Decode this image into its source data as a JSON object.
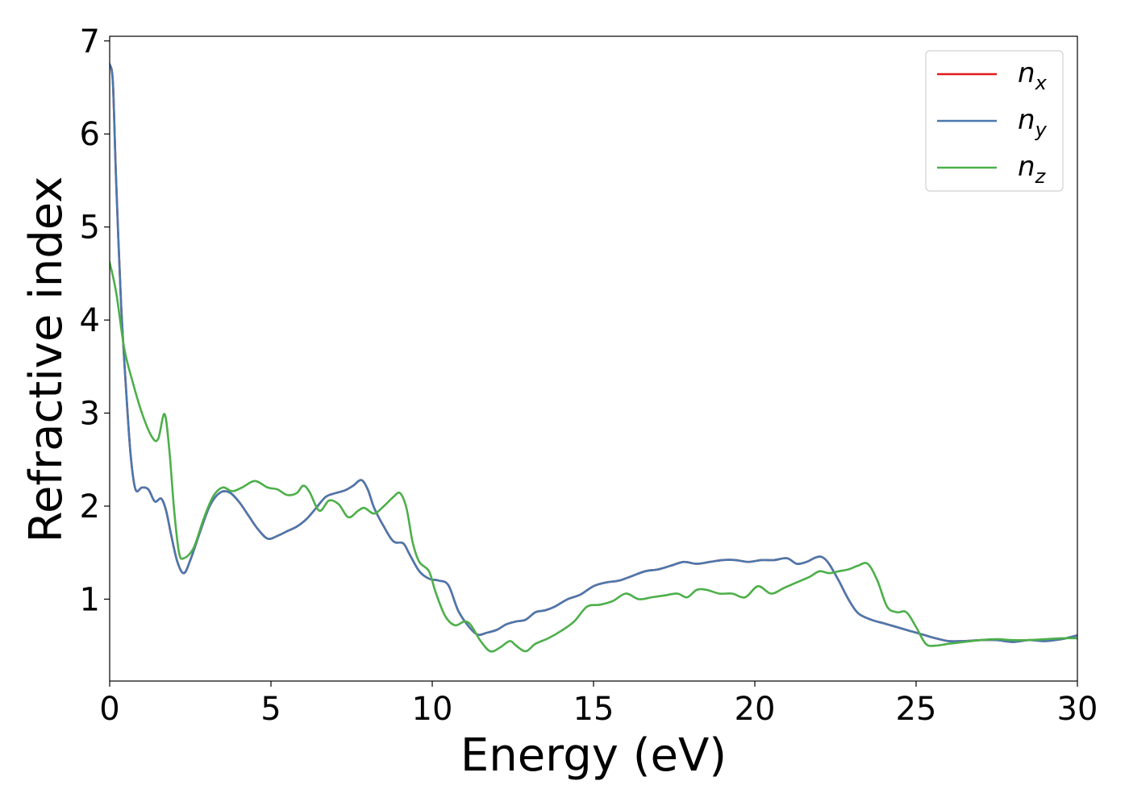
{
  "chart_data": {
    "type": "line",
    "title": "",
    "xlabel": "Energy (eV)",
    "ylabel": "Refractive index",
    "xlim": [
      0,
      30
    ],
    "ylim": [
      0.12,
      7.05
    ],
    "xticks": [
      0,
      5,
      10,
      15,
      20,
      25,
      30
    ],
    "yticks": [
      1,
      2,
      3,
      4,
      5,
      6,
      7
    ],
    "grid": false,
    "legend_position": "top-right",
    "series": [
      {
        "name": "n_x",
        "legend_main": "n",
        "legend_sub": "x",
        "color": "#e41a1c",
        "x": [
          0,
          0.1,
          0.2,
          0.35,
          0.5,
          0.65,
          0.8,
          1.0,
          1.2,
          1.4,
          1.6,
          1.75,
          1.9,
          2.1,
          2.3,
          2.5,
          2.8,
          3.1,
          3.4,
          3.7,
          4.0,
          4.3,
          4.6,
          4.9,
          5.2,
          5.5,
          5.8,
          6.1,
          6.4,
          6.7,
          7.0,
          7.3,
          7.55,
          7.8,
          8.0,
          8.2,
          8.5,
          8.8,
          9.1,
          9.3,
          9.6,
          9.9,
          10.2,
          10.5,
          10.8,
          11.1,
          11.4,
          11.7,
          12.0,
          12.3,
          12.6,
          12.9,
          13.2,
          13.5,
          13.8,
          14.2,
          14.6,
          15.0,
          15.4,
          15.8,
          16.2,
          16.6,
          17.0,
          17.4,
          17.8,
          18.2,
          18.6,
          19.0,
          19.4,
          19.8,
          20.2,
          20.6,
          21.0,
          21.3,
          21.6,
          21.9,
          22.1,
          22.3,
          22.6,
          22.9,
          23.2,
          23.6,
          24.0,
          24.4,
          24.8,
          25.2,
          25.6,
          26.0,
          26.5,
          27.0,
          27.5,
          28.0,
          28.5,
          29.0,
          29.5,
          30.0
        ],
        "y": [
          6.75,
          6.55,
          5.5,
          4.2,
          3.3,
          2.55,
          2.18,
          2.2,
          2.18,
          2.05,
          2.08,
          1.95,
          1.7,
          1.4,
          1.28,
          1.42,
          1.72,
          2.0,
          2.14,
          2.15,
          2.05,
          1.9,
          1.75,
          1.65,
          1.68,
          1.73,
          1.78,
          1.86,
          1.98,
          2.1,
          2.14,
          2.17,
          2.22,
          2.28,
          2.18,
          1.98,
          1.78,
          1.62,
          1.6,
          1.48,
          1.3,
          1.22,
          1.2,
          1.15,
          0.88,
          0.72,
          0.62,
          0.64,
          0.67,
          0.73,
          0.76,
          0.78,
          0.86,
          0.88,
          0.92,
          1.0,
          1.05,
          1.14,
          1.18,
          1.2,
          1.25,
          1.3,
          1.32,
          1.36,
          1.4,
          1.38,
          1.4,
          1.42,
          1.42,
          1.4,
          1.42,
          1.42,
          1.44,
          1.38,
          1.4,
          1.45,
          1.45,
          1.38,
          1.2,
          1.0,
          0.85,
          0.78,
          0.74,
          0.7,
          0.66,
          0.62,
          0.58,
          0.55,
          0.55,
          0.56,
          0.56,
          0.54,
          0.56,
          0.55,
          0.57,
          0.61
        ]
      },
      {
        "name": "n_y",
        "legend_main": "n",
        "legend_sub": "y",
        "color": "#4a78ad",
        "x": [
          0,
          0.1,
          0.2,
          0.35,
          0.5,
          0.65,
          0.8,
          1.0,
          1.2,
          1.4,
          1.6,
          1.75,
          1.9,
          2.1,
          2.3,
          2.5,
          2.8,
          3.1,
          3.4,
          3.7,
          4.0,
          4.3,
          4.6,
          4.9,
          5.2,
          5.5,
          5.8,
          6.1,
          6.4,
          6.7,
          7.0,
          7.3,
          7.55,
          7.8,
          8.0,
          8.2,
          8.5,
          8.8,
          9.1,
          9.3,
          9.6,
          9.9,
          10.2,
          10.5,
          10.8,
          11.1,
          11.4,
          11.7,
          12.0,
          12.3,
          12.6,
          12.9,
          13.2,
          13.5,
          13.8,
          14.2,
          14.6,
          15.0,
          15.4,
          15.8,
          16.2,
          16.6,
          17.0,
          17.4,
          17.8,
          18.2,
          18.6,
          19.0,
          19.4,
          19.8,
          20.2,
          20.6,
          21.0,
          21.3,
          21.6,
          21.9,
          22.1,
          22.3,
          22.6,
          22.9,
          23.2,
          23.6,
          24.0,
          24.4,
          24.8,
          25.2,
          25.6,
          26.0,
          26.5,
          27.0,
          27.5,
          28.0,
          28.5,
          29.0,
          29.5,
          30.0
        ],
        "y": [
          6.75,
          6.55,
          5.5,
          4.2,
          3.3,
          2.55,
          2.18,
          2.2,
          2.18,
          2.05,
          2.08,
          1.95,
          1.7,
          1.4,
          1.28,
          1.42,
          1.72,
          2.0,
          2.14,
          2.15,
          2.05,
          1.9,
          1.75,
          1.65,
          1.68,
          1.73,
          1.78,
          1.86,
          1.98,
          2.1,
          2.14,
          2.17,
          2.22,
          2.28,
          2.18,
          1.98,
          1.78,
          1.62,
          1.6,
          1.48,
          1.3,
          1.22,
          1.2,
          1.15,
          0.88,
          0.72,
          0.62,
          0.64,
          0.67,
          0.73,
          0.76,
          0.78,
          0.86,
          0.88,
          0.92,
          1.0,
          1.05,
          1.14,
          1.18,
          1.2,
          1.25,
          1.3,
          1.32,
          1.36,
          1.4,
          1.38,
          1.4,
          1.42,
          1.42,
          1.4,
          1.42,
          1.42,
          1.44,
          1.38,
          1.4,
          1.45,
          1.45,
          1.38,
          1.2,
          1.0,
          0.85,
          0.78,
          0.74,
          0.7,
          0.66,
          0.62,
          0.58,
          0.55,
          0.55,
          0.56,
          0.56,
          0.54,
          0.56,
          0.55,
          0.57,
          0.61
        ]
      },
      {
        "name": "n_z",
        "legend_main": "n",
        "legend_sub": "z",
        "color": "#4daf4a",
        "x": [
          0,
          0.2,
          0.45,
          0.7,
          1.0,
          1.3,
          1.5,
          1.7,
          1.85,
          2.0,
          2.15,
          2.3,
          2.6,
          2.9,
          3.2,
          3.5,
          3.8,
          4.1,
          4.5,
          4.9,
          5.2,
          5.5,
          5.8,
          6.0,
          6.2,
          6.5,
          6.8,
          7.1,
          7.4,
          7.7,
          7.9,
          8.2,
          8.5,
          8.8,
          9.0,
          9.2,
          9.4,
          9.6,
          9.9,
          10.1,
          10.4,
          10.7,
          11.0,
          11.2,
          11.5,
          11.8,
          12.1,
          12.4,
          12.6,
          12.9,
          13.2,
          13.6,
          14.0,
          14.4,
          14.8,
          15.2,
          15.6,
          16.0,
          16.4,
          16.8,
          17.2,
          17.6,
          17.9,
          18.2,
          18.5,
          18.9,
          19.3,
          19.7,
          20.1,
          20.5,
          20.9,
          21.3,
          21.7,
          22.0,
          22.3,
          22.6,
          22.9,
          23.2,
          23.5,
          23.8,
          24.1,
          24.4,
          24.7,
          25.0,
          25.3,
          25.6,
          26.0,
          26.5,
          27.0,
          27.5,
          28.0,
          28.5,
          29.0,
          29.5,
          30.0
        ],
        "y": [
          4.62,
          4.3,
          3.7,
          3.35,
          3.0,
          2.75,
          2.72,
          2.99,
          2.6,
          1.95,
          1.5,
          1.44,
          1.55,
          1.85,
          2.1,
          2.2,
          2.16,
          2.2,
          2.27,
          2.2,
          2.18,
          2.12,
          2.14,
          2.22,
          2.15,
          1.95,
          2.06,
          2.02,
          1.88,
          1.95,
          1.98,
          1.92,
          2.0,
          2.1,
          2.14,
          1.98,
          1.6,
          1.4,
          1.3,
          1.08,
          0.82,
          0.72,
          0.76,
          0.72,
          0.55,
          0.44,
          0.48,
          0.55,
          0.5,
          0.44,
          0.52,
          0.58,
          0.66,
          0.76,
          0.92,
          0.94,
          0.98,
          1.06,
          1.0,
          1.02,
          1.04,
          1.06,
          1.02,
          1.1,
          1.1,
          1.06,
          1.06,
          1.02,
          1.14,
          1.06,
          1.12,
          1.18,
          1.24,
          1.3,
          1.28,
          1.3,
          1.32,
          1.36,
          1.38,
          1.2,
          0.92,
          0.86,
          0.86,
          0.7,
          0.52,
          0.5,
          0.52,
          0.54,
          0.56,
          0.57,
          0.56,
          0.56,
          0.57,
          0.58,
          0.58
        ]
      }
    ]
  }
}
